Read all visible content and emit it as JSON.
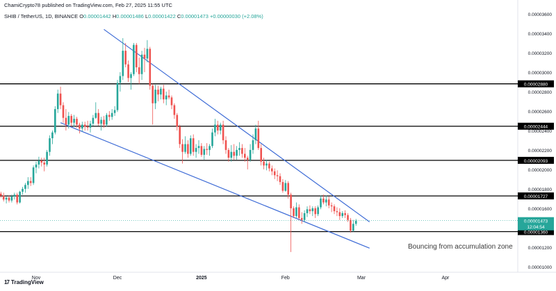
{
  "header": {
    "published": "ChamiCrypto78 published on TradingView.com, Feb 27, 2025 11:55 UTC",
    "symbol": "SHIB / TetherUS, 1D, BINANCE",
    "o_label": "O",
    "o_value": "0.00001442",
    "h_label": "H",
    "h_value": "0.00001486",
    "l_label": "L",
    "l_value": "0.00001422",
    "c_label": "C",
    "c_value": "0.00001473",
    "change": "+0.00000030 (+2.08%)"
  },
  "annotation": "Bouncing from accumulation zone",
  "logo": {
    "mark": "17",
    "text": "TradingView"
  },
  "colors": {
    "up": "#26a69a",
    "down": "#ef5350",
    "trendline": "#3d6bd6",
    "level": "#000000",
    "label_bg": "#000000"
  },
  "chart_data": {
    "type": "candlestick",
    "x_ticks": [
      "Nov",
      "Dec",
      "2025",
      "Feb",
      "Mar",
      "Apr"
    ],
    "y_ticks": [
      "0.00003600",
      "0.00003400",
      "0.00003200",
      "0.00003000",
      "0.00002800",
      "0.00002600",
      "0.00002400",
      "0.00002200",
      "0.00002000",
      "0.00001800",
      "0.00001600",
      "0.00001400",
      "0.00001200",
      "0.00001000"
    ],
    "ylim": [
      9.85e-06,
      3.685e-05
    ],
    "levels": [
      {
        "value": 2.88e-05,
        "label": "0.00002880"
      },
      {
        "value": 2.444e-05,
        "label": "0.00002444"
      },
      {
        "value": 2.093e-05,
        "label": "0.00002093"
      },
      {
        "value": 1.727e-05,
        "label": "0.00001727"
      },
      {
        "value": 1.36e-05,
        "label": "0.00001360"
      }
    ],
    "current_price": {
      "value": 1.473e-05,
      "label": "0.00001473",
      "countdown": "12:04:54"
    },
    "trendlines": [
      {
        "name": "upper",
        "points": [
          [
            "2024-11-26",
            3.44e-05
          ],
          [
            "2025-03-04",
            1.46e-05
          ]
        ]
      },
      {
        "name": "lower",
        "points": [
          [
            "2024-11-10",
            2.48e-05
          ],
          [
            "2025-03-04",
            1.19e-05
          ]
        ]
      }
    ],
    "candles": [
      [
        "2024-10-09",
        1.74e-05,
        1.78e-05,
        1.68e-05,
        1.7e-05
      ],
      [
        "2024-10-10",
        1.7e-05,
        1.75e-05,
        1.67e-05,
        1.72e-05
      ],
      [
        "2024-10-11",
        1.72e-05,
        1.79e-05,
        1.71e-05,
        1.77e-05
      ],
      [
        "2024-10-12",
        1.77e-05,
        1.83e-05,
        1.75e-05,
        1.81e-05
      ],
      [
        "2024-10-13",
        1.81e-05,
        1.84e-05,
        1.77e-05,
        1.79e-05
      ],
      [
        "2024-10-14",
        1.79e-05,
        1.85e-05,
        1.76e-05,
        1.78e-05
      ],
      [
        "2024-10-15",
        1.78e-05,
        1.82e-05,
        1.72e-05,
        1.74e-05
      ],
      [
        "2024-10-16",
        1.74e-05,
        1.78e-05,
        1.71e-05,
        1.76e-05
      ],
      [
        "2024-10-17",
        1.76e-05,
        1.78e-05,
        1.7e-05,
        1.72e-05
      ],
      [
        "2024-10-18",
        1.72e-05,
        1.76e-05,
        1.69e-05,
        1.75e-05
      ],
      [
        "2024-10-19",
        1.75e-05,
        1.77e-05,
        1.71e-05,
        1.73e-05
      ],
      [
        "2024-10-20",
        1.73e-05,
        1.76e-05,
        1.67e-05,
        1.69e-05
      ],
      [
        "2024-10-21",
        1.69e-05,
        1.72e-05,
        1.65e-05,
        1.71e-05
      ],
      [
        "2024-10-22",
        1.71e-05,
        1.73e-05,
        1.66e-05,
        1.68e-05
      ],
      [
        "2024-10-23",
        1.68e-05,
        1.74e-05,
        1.66e-05,
        1.72e-05
      ],
      [
        "2024-10-24",
        1.72e-05,
        1.76e-05,
        1.69e-05,
        1.74e-05
      ],
      [
        "2024-10-25",
        1.74e-05,
        1.76e-05,
        1.64e-05,
        1.66e-05
      ],
      [
        "2024-10-26",
        1.66e-05,
        1.78e-05,
        1.65e-05,
        1.77e-05
      ],
      [
        "2024-10-27",
        1.77e-05,
        1.82e-05,
        1.74e-05,
        1.8e-05
      ],
      [
        "2024-10-28",
        1.8e-05,
        1.86e-05,
        1.76e-05,
        1.84e-05
      ],
      [
        "2024-10-29",
        1.84e-05,
        1.92e-05,
        1.8e-05,
        1.88e-05
      ],
      [
        "2024-10-30",
        1.88e-05,
        1.92e-05,
        1.83e-05,
        1.86e-05
      ],
      [
        "2024-10-31",
        1.86e-05,
        2.04e-05,
        1.84e-05,
        2.02e-05
      ],
      [
        "2024-11-01",
        2.02e-05,
        2.08e-05,
        1.96e-05,
        2.05e-05
      ],
      [
        "2024-11-02",
        2.05e-05,
        2.13e-05,
        2.01e-05,
        2.09e-05
      ],
      [
        "2024-11-03",
        2.09e-05,
        2.12e-05,
        2.03e-05,
        2.07e-05
      ],
      [
        "2024-11-04",
        2.07e-05,
        2.12e-05,
        1.98e-05,
        2.05e-05
      ],
      [
        "2024-11-05",
        2.05e-05,
        2.2e-05,
        2.03e-05,
        2.18e-05
      ],
      [
        "2024-11-06",
        2.18e-05,
        2.35e-05,
        2.14e-05,
        2.32e-05
      ],
      [
        "2024-11-07",
        2.32e-05,
        2.4e-05,
        2.26e-05,
        2.38e-05
      ],
      [
        "2024-11-08",
        2.38e-05,
        2.65e-05,
        2.36e-05,
        2.62e-05
      ],
      [
        "2024-11-09",
        2.62e-05,
        2.82e-05,
        2.58e-05,
        2.78e-05
      ],
      [
        "2024-11-10",
        2.78e-05,
        2.85e-05,
        2.62e-05,
        2.66e-05
      ],
      [
        "2024-11-11",
        2.66e-05,
        2.69e-05,
        2.48e-05,
        2.53e-05
      ],
      [
        "2024-11-12",
        2.53e-05,
        2.62e-05,
        2.4e-05,
        2.46e-05
      ],
      [
        "2024-11-13",
        2.46e-05,
        2.59e-05,
        2.42e-05,
        2.55e-05
      ],
      [
        "2024-11-14",
        2.55e-05,
        2.57e-05,
        2.44e-05,
        2.48e-05
      ],
      [
        "2024-11-15",
        2.48e-05,
        2.56e-05,
        2.44e-05,
        2.52e-05
      ],
      [
        "2024-11-16",
        2.52e-05,
        2.54e-05,
        2.43e-05,
        2.46e-05
      ],
      [
        "2024-11-17",
        2.46e-05,
        2.48e-05,
        2.37e-05,
        2.42e-05
      ],
      [
        "2024-11-18",
        2.42e-05,
        2.49e-05,
        2.39e-05,
        2.46e-05
      ],
      [
        "2024-11-19",
        2.46e-05,
        2.49e-05,
        2.4e-05,
        2.44e-05
      ],
      [
        "2024-11-20",
        2.44e-05,
        2.5e-05,
        2.4e-05,
        2.43e-05
      ],
      [
        "2024-11-21",
        2.43e-05,
        2.5e-05,
        2.38e-05,
        2.47e-05
      ],
      [
        "2024-11-22",
        2.47e-05,
        2.56e-05,
        2.45e-05,
        2.53e-05
      ],
      [
        "2024-11-23",
        2.53e-05,
        2.69e-05,
        2.52e-05,
        2.58e-05
      ],
      [
        "2024-11-24",
        2.58e-05,
        2.62e-05,
        2.45e-05,
        2.47e-05
      ],
      [
        "2024-11-25",
        2.47e-05,
        2.54e-05,
        2.4e-05,
        2.51e-05
      ],
      [
        "2024-11-26",
        2.51e-05,
        2.55e-05,
        2.43e-05,
        2.46e-05
      ],
      [
        "2024-11-27",
        2.46e-05,
        2.58e-05,
        2.44e-05,
        2.56e-05
      ],
      [
        "2024-11-28",
        2.56e-05,
        2.6e-05,
        2.5e-05,
        2.54e-05
      ],
      [
        "2024-11-29",
        2.54e-05,
        2.62e-05,
        2.51e-05,
        2.58e-05
      ],
      [
        "2024-11-30",
        2.58e-05,
        2.65e-05,
        2.55e-05,
        2.61e-05
      ],
      [
        "2024-12-01",
        2.61e-05,
        2.92e-05,
        2.59e-05,
        2.89e-05
      ],
      [
        "2024-12-02",
        2.89e-05,
        3e-05,
        2.8e-05,
        2.96e-05
      ],
      [
        "2024-12-03",
        2.96e-05,
        3.35e-05,
        2.92e-05,
        3.22e-05
      ],
      [
        "2024-12-04",
        3.22e-05,
        3.3e-05,
        3.05e-05,
        3.08e-05
      ],
      [
        "2024-12-05",
        3.08e-05,
        3.12e-05,
        2.9e-05,
        2.94e-05
      ],
      [
        "2024-12-06",
        2.94e-05,
        3e-05,
        2.82e-05,
        2.98e-05
      ],
      [
        "2024-12-07",
        2.98e-05,
        3.3e-05,
        2.96e-05,
        3.28e-05
      ],
      [
        "2024-12-08",
        3.28e-05,
        3.3e-05,
        3e-05,
        3.05e-05
      ],
      [
        "2024-12-09",
        3.05e-05,
        3.15e-05,
        2.88e-05,
        2.98e-05
      ],
      [
        "2024-12-10",
        2.98e-05,
        3.22e-05,
        2.92e-05,
        3.18e-05
      ],
      [
        "2024-12-11",
        3.18e-05,
        3.25e-05,
        3e-05,
        3.14e-05
      ],
      [
        "2024-12-12",
        3.14e-05,
        3.33e-05,
        3.1e-05,
        3.24e-05
      ],
      [
        "2024-12-13",
        3.24e-05,
        3.26e-05,
        2.82e-05,
        2.86e-05
      ],
      [
        "2024-12-14",
        2.86e-05,
        2.88e-05,
        2.46e-05,
        2.68e-05
      ],
      [
        "2024-12-15",
        2.68e-05,
        2.87e-05,
        2.62e-05,
        2.82e-05
      ],
      [
        "2024-12-16",
        2.82e-05,
        2.86e-05,
        2.7e-05,
        2.77e-05
      ],
      [
        "2024-12-17",
        2.77e-05,
        2.85e-05,
        2.72e-05,
        2.83e-05
      ],
      [
        "2024-12-18",
        2.83e-05,
        2.87e-05,
        2.68e-05,
        2.72e-05
      ],
      [
        "2024-12-19",
        2.72e-05,
        2.8e-05,
        2.66e-05,
        2.76e-05
      ],
      [
        "2024-12-20",
        2.76e-05,
        2.82e-05,
        2.72e-05,
        2.74e-05
      ],
      [
        "2024-12-21",
        2.74e-05,
        2.76e-05,
        2.62e-05,
        2.66e-05
      ],
      [
        "2024-12-22",
        2.66e-05,
        2.68e-05,
        2.52e-05,
        2.56e-05
      ],
      [
        "2024-12-23",
        2.56e-05,
        2.58e-05,
        2.4e-05,
        2.44e-05
      ],
      [
        "2024-12-24",
        2.44e-05,
        2.46e-05,
        2.22e-05,
        2.26e-05
      ],
      [
        "2024-12-25",
        2.26e-05,
        2.31e-05,
        2.06e-05,
        2.18e-05
      ],
      [
        "2024-12-26",
        2.18e-05,
        2.34e-05,
        2.16e-05,
        2.26e-05
      ],
      [
        "2024-12-27",
        2.26e-05,
        2.3e-05,
        2.12e-05,
        2.16e-05
      ],
      [
        "2024-12-28",
        2.16e-05,
        2.35e-05,
        2.14e-05,
        2.32e-05
      ],
      [
        "2024-12-29",
        2.32e-05,
        2.36e-05,
        2.14e-05,
        2.18e-05
      ],
      [
        "2024-12-30",
        2.18e-05,
        2.26e-05,
        2.12e-05,
        2.22e-05
      ],
      [
        "2024-12-31",
        2.22e-05,
        2.3e-05,
        2.16e-05,
        2.24e-05
      ],
      [
        "2025-01-01",
        2.24e-05,
        2.27e-05,
        2.13e-05,
        2.15e-05
      ],
      [
        "2025-01-02",
        2.15e-05,
        2.24e-05,
        2.1e-05,
        2.21e-05
      ],
      [
        "2025-01-03",
        2.21e-05,
        2.27e-05,
        2.15e-05,
        2.2e-05
      ],
      [
        "2025-01-04",
        2.2e-05,
        2.26e-05,
        2.14e-05,
        2.24e-05
      ],
      [
        "2025-01-05",
        2.24e-05,
        2.42e-05,
        2.22e-05,
        2.38e-05
      ],
      [
        "2025-01-06",
        2.38e-05,
        2.52e-05,
        2.34e-05,
        2.46e-05
      ],
      [
        "2025-01-07",
        2.46e-05,
        2.5e-05,
        2.36e-05,
        2.4e-05
      ],
      [
        "2025-01-08",
        2.4e-05,
        2.48e-05,
        2.36e-05,
        2.46e-05
      ],
      [
        "2025-01-09",
        2.46e-05,
        2.5e-05,
        2.26e-05,
        2.3e-05
      ],
      [
        "2025-01-10",
        2.3e-05,
        2.34e-05,
        2.16e-05,
        2.2e-05
      ],
      [
        "2025-01-11",
        2.2e-05,
        2.22e-05,
        2.08e-05,
        2.12e-05
      ],
      [
        "2025-01-12",
        2.12e-05,
        2.25e-05,
        2.08e-05,
        2.18e-05
      ],
      [
        "2025-01-13",
        2.18e-05,
        2.26e-05,
        2.1e-05,
        2.14e-05
      ],
      [
        "2025-01-14",
        2.14e-05,
        2.24e-05,
        2.1e-05,
        2.2e-05
      ],
      [
        "2025-01-15",
        2.2e-05,
        2.28e-05,
        2.14e-05,
        2.22e-05
      ],
      [
        "2025-01-16",
        2.22e-05,
        2.26e-05,
        2.12e-05,
        2.16e-05
      ],
      [
        "2025-01-17",
        2.16e-05,
        2.22e-05,
        2.08e-05,
        2.12e-05
      ],
      [
        "2025-01-18",
        2.12e-05,
        2.14e-05,
        2e-05,
        2.1e-05
      ],
      [
        "2025-01-19",
        2.1e-05,
        2.26e-05,
        2.08e-05,
        2.2e-05
      ],
      [
        "2025-01-20",
        2.2e-05,
        2.36e-05,
        2.16e-05,
        2.3e-05
      ],
      [
        "2025-01-21",
        2.3e-05,
        2.46e-05,
        2.26e-05,
        2.42e-05
      ],
      [
        "2025-01-22",
        2.42e-05,
        2.5e-05,
        2.2e-05,
        2.22e-05
      ],
      [
        "2025-01-23",
        2.22e-05,
        2.26e-05,
        2.04e-05,
        2.08e-05
      ],
      [
        "2025-01-24",
        2.08e-05,
        2.12e-05,
        2e-05,
        2.04e-05
      ],
      [
        "2025-01-25",
        2.04e-05,
        2.1e-05,
        1.99e-05,
        2.06e-05
      ],
      [
        "2025-01-26",
        2.06e-05,
        2.08e-05,
        1.98e-05,
        2.01e-05
      ],
      [
        "2025-01-27",
        2.01e-05,
        2.04e-05,
        1.94e-05,
        1.98e-05
      ],
      [
        "2025-01-28",
        1.98e-05,
        2.01e-05,
        1.9e-05,
        1.94e-05
      ],
      [
        "2025-01-29",
        1.94e-05,
        1.99e-05,
        1.88e-05,
        1.93e-05
      ],
      [
        "2025-01-30",
        1.93e-05,
        1.96e-05,
        1.84e-05,
        1.87e-05
      ],
      [
        "2025-01-31",
        1.87e-05,
        1.9e-05,
        1.76e-05,
        1.78e-05
      ],
      [
        "2025-02-01",
        1.78e-05,
        1.89e-05,
        1.77e-05,
        1.86e-05
      ],
      [
        "2025-02-02",
        1.86e-05,
        1.88e-05,
        1.7e-05,
        1.74e-05
      ],
      [
        "2025-02-03",
        1.74e-05,
        1.76e-05,
        1.15e-05,
        1.6e-05
      ],
      [
        "2025-02-04",
        1.6e-05,
        1.62e-05,
        1.5e-05,
        1.52e-05
      ],
      [
        "2025-02-05",
        1.52e-05,
        1.66e-05,
        1.5e-05,
        1.61e-05
      ],
      [
        "2025-02-06",
        1.61e-05,
        1.64e-05,
        1.48e-05,
        1.5e-05
      ],
      [
        "2025-02-07",
        1.5e-05,
        1.56e-05,
        1.44e-05,
        1.48e-05
      ],
      [
        "2025-02-08",
        1.48e-05,
        1.58e-05,
        1.46e-05,
        1.55e-05
      ],
      [
        "2025-02-09",
        1.55e-05,
        1.62e-05,
        1.51e-05,
        1.59e-05
      ],
      [
        "2025-02-10",
        1.59e-05,
        1.63e-05,
        1.54e-05,
        1.57e-05
      ],
      [
        "2025-02-11",
        1.57e-05,
        1.62e-05,
        1.52e-05,
        1.6e-05
      ],
      [
        "2025-02-12",
        1.6e-05,
        1.62e-05,
        1.5e-05,
        1.54e-05
      ],
      [
        "2025-02-13",
        1.54e-05,
        1.63e-05,
        1.52e-05,
        1.61e-05
      ],
      [
        "2025-02-14",
        1.61e-05,
        1.73e-05,
        1.59e-05,
        1.7e-05
      ],
      [
        "2025-02-15",
        1.7e-05,
        1.74e-05,
        1.64e-05,
        1.66e-05
      ],
      [
        "2025-02-16",
        1.66e-05,
        1.73e-05,
        1.62e-05,
        1.69e-05
      ],
      [
        "2025-02-17",
        1.69e-05,
        1.72e-05,
        1.6e-05,
        1.63e-05
      ],
      [
        "2025-02-18",
        1.63e-05,
        1.66e-05,
        1.56e-05,
        1.62e-05
      ],
      [
        "2025-02-19",
        1.62e-05,
        1.64e-05,
        1.54e-05,
        1.57e-05
      ],
      [
        "2025-02-20",
        1.57e-05,
        1.61e-05,
        1.52e-05,
        1.56e-05
      ],
      [
        "2025-02-21",
        1.56e-05,
        1.6e-05,
        1.48e-05,
        1.52e-05
      ],
      [
        "2025-02-22",
        1.52e-05,
        1.57e-05,
        1.5e-05,
        1.55e-05
      ],
      [
        "2025-02-23",
        1.55e-05,
        1.58e-05,
        1.5e-05,
        1.53e-05
      ],
      [
        "2025-02-24",
        1.53e-05,
        1.55e-05,
        1.46e-05,
        1.48e-05
      ],
      [
        "2025-02-25",
        1.48e-05,
        1.5e-05,
        1.35e-05,
        1.37e-05
      ],
      [
        "2025-02-26",
        1.37e-05,
        1.48e-05,
        1.36e-05,
        1.44e-05
      ],
      [
        "2025-02-27",
        1.44e-05,
        1.49e-05,
        1.42e-05,
        1.47e-05
      ]
    ]
  }
}
